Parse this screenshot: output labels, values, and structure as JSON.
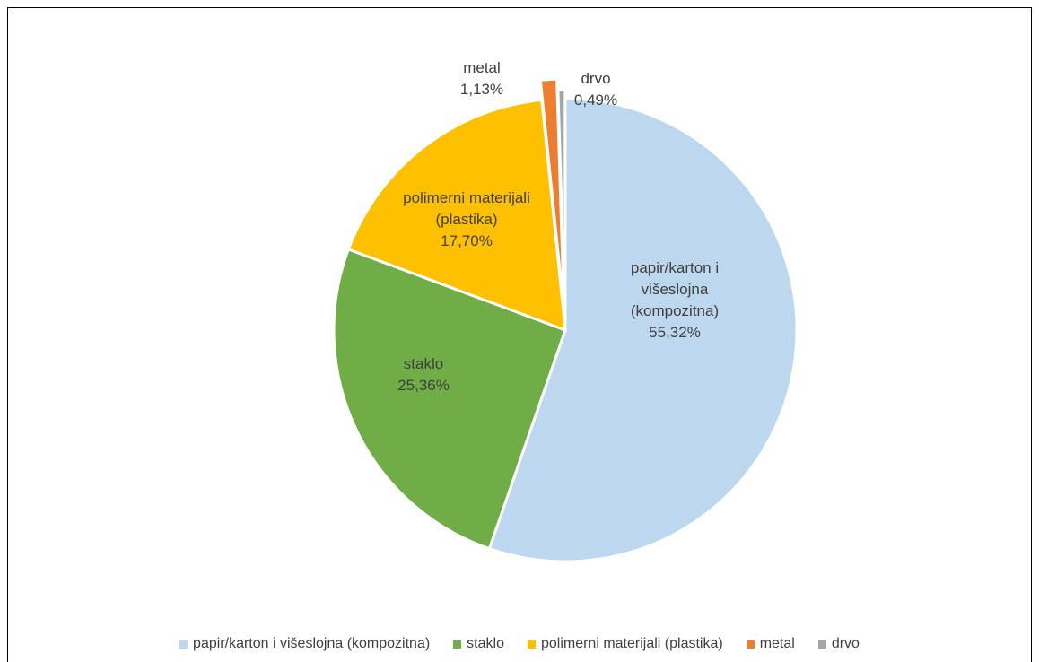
{
  "chart_data": {
    "type": "pie",
    "categories": [
      "papir/karton i višeslojna (kompozitna)",
      "staklo",
      "polimerni materijali (plastika)",
      "metal",
      "drvo"
    ],
    "values": [
      55.32,
      25.36,
      17.7,
      1.13,
      0.49
    ],
    "value_labels": [
      "55,32%",
      "25,36%",
      "17,70%",
      "1,13%",
      "0,49%"
    ],
    "colors": [
      "#bdd7ee",
      "#70ad47",
      "#ffc000",
      "#ed7d31",
      "#a5a5a5"
    ],
    "legend": "bottom"
  }
}
